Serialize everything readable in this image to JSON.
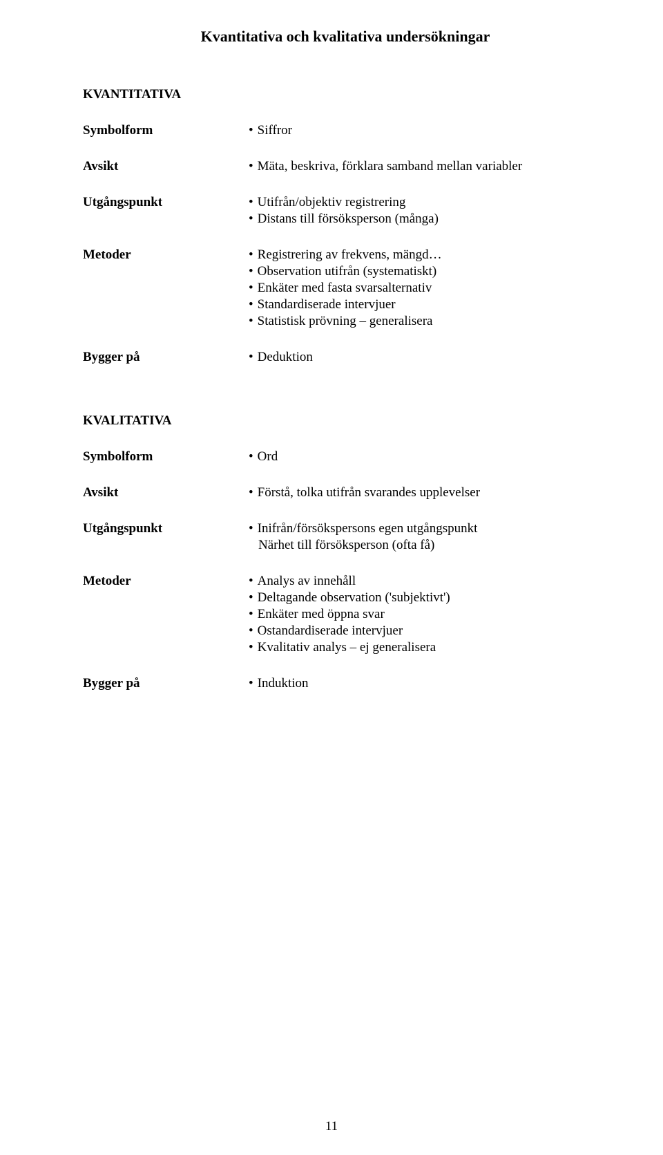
{
  "title": "Kvantitativa och kvalitativa undersökningar",
  "section_a": {
    "header": "KVANTITATIVA",
    "rows": [
      {
        "label": "Symbolform",
        "items": [
          {
            "text": "Siffror",
            "bullet": true
          }
        ]
      },
      {
        "label": "Avsikt",
        "items": [
          {
            "text": "Mäta, beskriva, förklara samband mellan variabler",
            "bullet": true
          }
        ]
      },
      {
        "label": "Utgångspunkt",
        "items": [
          {
            "text": "Utifrån/objektiv registrering",
            "bullet": true
          },
          {
            "text": "Distans till försöksperson (många)",
            "bullet": true
          }
        ]
      },
      {
        "label": "Metoder",
        "items": [
          {
            "text": "Registrering av frekvens, mängd…",
            "bullet": true
          },
          {
            "text": "Observation utifrån (systematiskt)",
            "bullet": true
          },
          {
            "text": "Enkäter med fasta svarsalternativ",
            "bullet": true
          },
          {
            "text": "Standardiserade intervjuer",
            "bullet": true
          },
          {
            "text": "Statistisk prövning – generalisera",
            "bullet": true
          }
        ]
      },
      {
        "label": "Bygger på",
        "items": [
          {
            "text": "Deduktion",
            "bullet": true
          }
        ]
      }
    ]
  },
  "section_b": {
    "header": "KVALITATIVA",
    "rows": [
      {
        "label": "Symbolform",
        "items": [
          {
            "text": "Ord",
            "bullet": true
          }
        ]
      },
      {
        "label": "Avsikt",
        "items": [
          {
            "text": "Förstå, tolka utifrån svarandes upplevelser",
            "bullet": true
          }
        ]
      },
      {
        "label": "Utgångspunkt",
        "items": [
          {
            "text": "Inifrån/försökspersons egen utgångspunkt",
            "bullet": true
          },
          {
            "text": "Närhet till försöksperson (ofta få)",
            "bullet": false
          }
        ]
      },
      {
        "label": "Metoder",
        "items": [
          {
            "text": "Analys av innehåll",
            "bullet": true
          },
          {
            "text": "Deltagande observation ('subjektivt')",
            "bullet": true
          },
          {
            "text": "Enkäter med öppna svar",
            "bullet": true
          },
          {
            "text": "Ostandardiserade intervjuer",
            "bullet": true
          },
          {
            "text": "Kvalitativ analys – ej generalisera",
            "bullet": true
          }
        ]
      },
      {
        "label": "Bygger på",
        "items": [
          {
            "text": "Induktion",
            "bullet": true
          }
        ]
      }
    ]
  },
  "page_number": "11"
}
